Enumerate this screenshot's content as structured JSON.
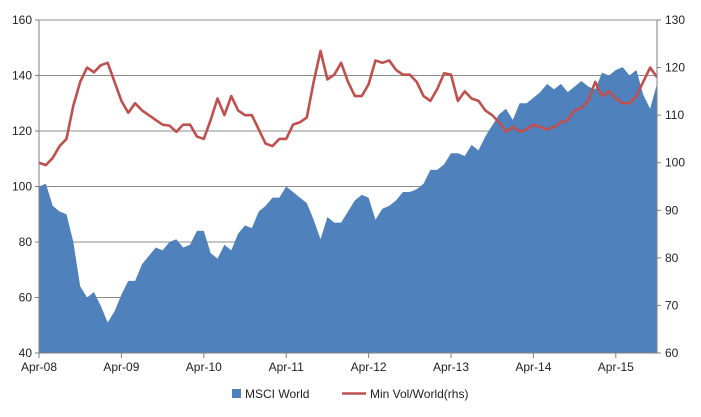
{
  "chart_data": {
    "type": "area",
    "title": "",
    "xlabel": "",
    "ylabel": "",
    "ylabel_right": "",
    "x_tick_labels": [
      "Apr-08",
      "Apr-09",
      "Apr-10",
      "Apr-11",
      "Apr-12",
      "Apr-13",
      "Apr-14",
      "Apr-15"
    ],
    "ylim": [
      40,
      160
    ],
    "y_ticks": [
      40,
      60,
      80,
      100,
      120,
      140,
      160
    ],
    "ylim_right": [
      60,
      130
    ],
    "y_ticks_right": [
      60,
      70,
      80,
      90,
      100,
      110,
      120,
      130
    ],
    "grid": true,
    "legend_position": "bottom",
    "x_start_month": "2008-04",
    "series": [
      {
        "name": "MSCI World",
        "type": "area",
        "axis": "left",
        "color": "#4f81bd",
        "values": [
          100,
          101,
          93,
          91,
          90,
          80,
          64,
          60,
          62,
          57,
          51,
          55,
          61,
          66,
          66,
          72,
          75,
          78,
          77,
          80,
          81,
          78,
          79,
          84,
          84,
          76,
          74,
          79,
          77,
          83,
          86,
          85,
          91,
          93,
          96,
          96,
          100,
          98,
          96,
          94,
          88,
          81,
          89,
          87,
          87,
          91,
          95,
          97,
          96,
          88,
          92,
          93,
          95,
          98,
          98,
          99,
          101,
          106,
          106,
          108,
          112,
          112,
          111,
          115,
          113,
          118,
          122,
          126,
          128,
          124,
          130,
          130,
          132,
          134,
          137,
          135,
          137,
          134,
          136,
          138,
          136,
          135,
          141,
          140,
          142,
          143,
          140,
          142,
          133,
          128,
          137
        ]
      },
      {
        "name": "Min Vol/World(rhs)",
        "type": "line",
        "axis": "right",
        "color": "#c0504d",
        "values": [
          100,
          99.5,
          101,
          103.5,
          105,
          112,
          117,
          120,
          119,
          120.5,
          121,
          117,
          113,
          110.5,
          112.5,
          111,
          110,
          109,
          108,
          107.8,
          106.5,
          108,
          108,
          105.5,
          105,
          109,
          113.5,
          110,
          114,
          111,
          110,
          110,
          107,
          104,
          103.5,
          105,
          105,
          108,
          108.5,
          109.5,
          117,
          123.5,
          117.5,
          118.5,
          121,
          117,
          114,
          114,
          116.5,
          121.5,
          121,
          121.5,
          119.5,
          118.5,
          118.5,
          117,
          114,
          113,
          115.5,
          118.8,
          118.5,
          113,
          115,
          113.5,
          113,
          111,
          110,
          108.5,
          106.5,
          107.5,
          106.5,
          107,
          108,
          107.5,
          107,
          107.5,
          108.5,
          109,
          111,
          111.5,
          113,
          117,
          114,
          115,
          113.5,
          112.5,
          112.5,
          114,
          117,
          120,
          118
        ]
      }
    ]
  }
}
